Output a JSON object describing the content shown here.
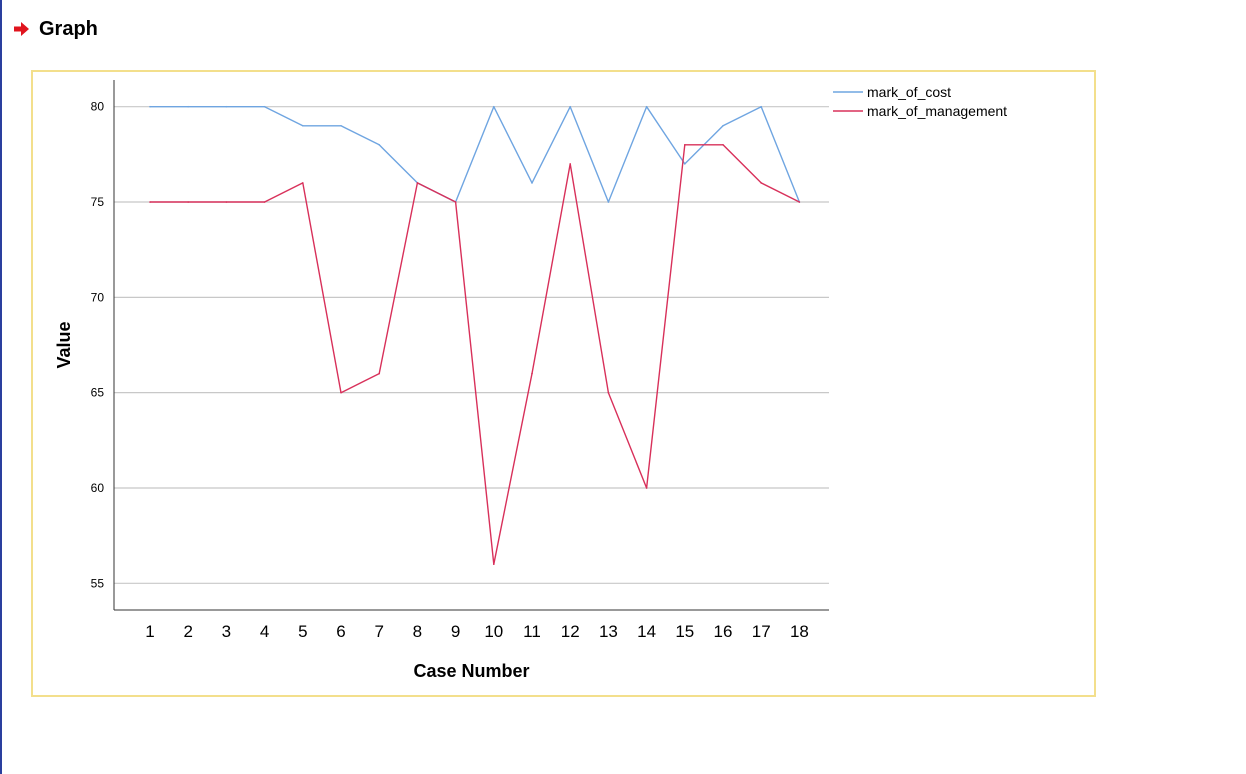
{
  "page": {
    "section_title": "Graph",
    "icon": "right-arrow-icon",
    "accent_color": "#e0141e"
  },
  "chart_data": {
    "type": "line",
    "title": "",
    "xlabel": "Case Number",
    "ylabel": "Value",
    "x": [
      1,
      2,
      3,
      4,
      5,
      6,
      7,
      8,
      9,
      10,
      11,
      12,
      13,
      14,
      15,
      16,
      17,
      18
    ],
    "yticks": [
      55,
      60,
      65,
      70,
      75,
      80
    ],
    "ylim": [
      53.6,
      81.4
    ],
    "grid": "horizontal",
    "legend_position": "top-right",
    "series": [
      {
        "name": "mark_of_cost",
        "color": "#6fa5e1",
        "values": [
          80,
          80,
          80,
          80,
          79,
          79,
          78,
          76,
          75,
          80,
          76,
          80,
          75,
          80,
          77,
          79,
          80,
          75
        ]
      },
      {
        "name": "mark_of_management",
        "color": "#d8305a",
        "values": [
          75,
          75,
          75,
          75,
          76,
          65,
          66,
          76,
          75,
          56,
          66,
          77,
          65,
          60,
          78,
          78,
          76,
          75
        ]
      }
    ]
  }
}
